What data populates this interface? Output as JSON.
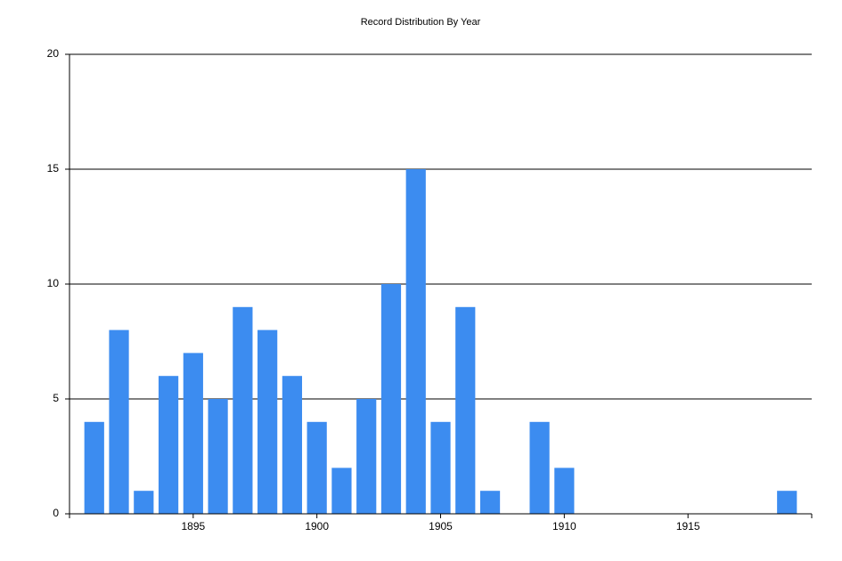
{
  "chart_data": {
    "type": "bar",
    "title": "Record Distribution By Year",
    "x": [
      1891,
      1892,
      1893,
      1894,
      1895,
      1896,
      1897,
      1898,
      1899,
      1900,
      1901,
      1902,
      1903,
      1904,
      1905,
      1906,
      1907,
      1909,
      1910,
      1919
    ],
    "values": [
      4,
      8,
      1,
      6,
      7,
      5,
      9,
      8,
      6,
      4,
      2,
      5,
      10,
      15,
      4,
      9,
      1,
      4,
      2,
      1
    ],
    "color": "#3c8cf0",
    "xlim": [
      1890,
      1920
    ],
    "xticks": [
      1895,
      1900,
      1905,
      1910,
      1915
    ],
    "ylim": [
      0,
      20
    ],
    "yticks": [
      0,
      5,
      10,
      15,
      20
    ],
    "grid": true
  }
}
